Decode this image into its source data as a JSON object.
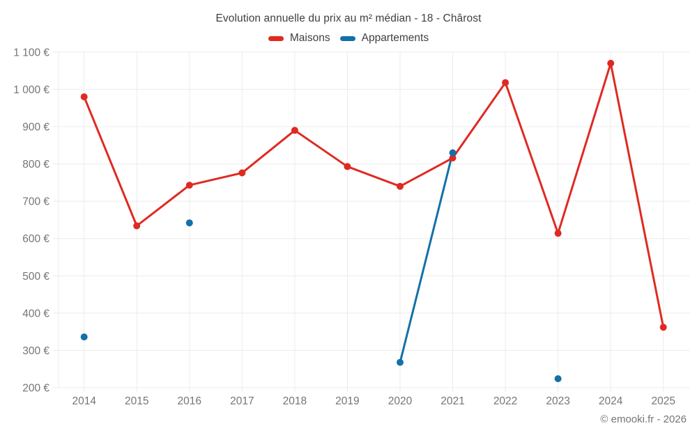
{
  "chart_data": {
    "type": "line",
    "title": "Evolution annuelle du prix au m² médian - 18 - Chârost",
    "categories": [
      "2014",
      "2015",
      "2016",
      "2017",
      "2018",
      "2019",
      "2020",
      "2021",
      "2022",
      "2023",
      "2024",
      "2025"
    ],
    "series": [
      {
        "name": "Maisons",
        "color": "#df2a22",
        "values": [
          980,
          634,
          743,
          776,
          890,
          793,
          740,
          816,
          1018,
          614,
          1070,
          362
        ]
      },
      {
        "name": "Appartements",
        "color": "#1470a8",
        "values": [
          336,
          null,
          642,
          null,
          null,
          null,
          268,
          830,
          null,
          224,
          null,
          null
        ]
      }
    ],
    "ylim": [
      200,
      1100
    ],
    "ytick_step": 100,
    "ytick_suffix": " €",
    "grid": true,
    "legend_position": "top",
    "style": {
      "grid_color": "#ececec",
      "tick_label_color": "#757575",
      "title_color": "#3c4043",
      "legend_label_color": "#3c4043",
      "background": "#ffffff"
    }
  },
  "footer": {
    "copyright": "© emooki.fr - 2026"
  }
}
